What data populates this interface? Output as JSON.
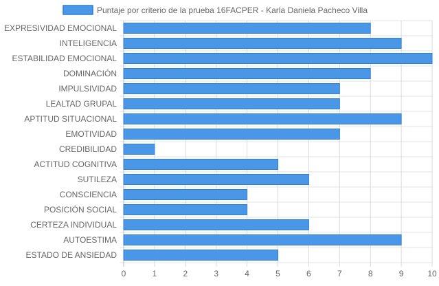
{
  "chart_data": {
    "type": "bar",
    "orientation": "horizontal",
    "categories": [
      "EXPRESIVIDAD EMOCIONAL",
      "INTELIGENCIA",
      "ESTABILIDAD EMOCIONAL",
      "DOMINACIÓN",
      "IMPULSIVIDAD",
      "LEALTAD GRUPAL",
      "APTITUD SITUACIONAL",
      "EMOTIVIDAD",
      "CREDIBILIDAD",
      "ACTITUD COGNITIVA",
      "SUTILEZA",
      "CONSCIENCIA",
      "POSICIÓN SOCIAL",
      "CERTEZA INDIVIDUAL",
      "AUTOESTIMA",
      "ESTADO DE ANSIEDAD"
    ],
    "series": [
      {
        "name": "Puntaje por criterio de la prueba 16FACPER - Karla Daniela Pacheco Villa",
        "values": [
          8,
          9,
          10,
          8,
          7,
          7,
          9,
          7,
          1,
          5,
          6,
          4,
          4,
          6,
          9,
          5
        ],
        "color": "#4a97e8",
        "border_color": "#2d7fd6"
      }
    ],
    "xlim": [
      0,
      10
    ],
    "x_ticks": [
      "0",
      "1",
      "2",
      "3",
      "4",
      "5",
      "6",
      "7",
      "8",
      "9",
      "10"
    ],
    "grid": true,
    "legend_position": "top",
    "title": "",
    "xlabel": "",
    "ylabel": ""
  }
}
